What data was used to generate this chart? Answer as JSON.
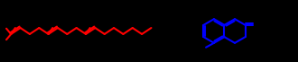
{
  "background": "#000000",
  "chain_color": "#ff0000",
  "ring_color": "#0000ff",
  "lw": 1.5,
  "figsize": [
    3.3,
    0.69
  ],
  "dpi": 100,
  "xlim": [
    0,
    33
  ],
  "ylim": [
    0,
    7
  ]
}
